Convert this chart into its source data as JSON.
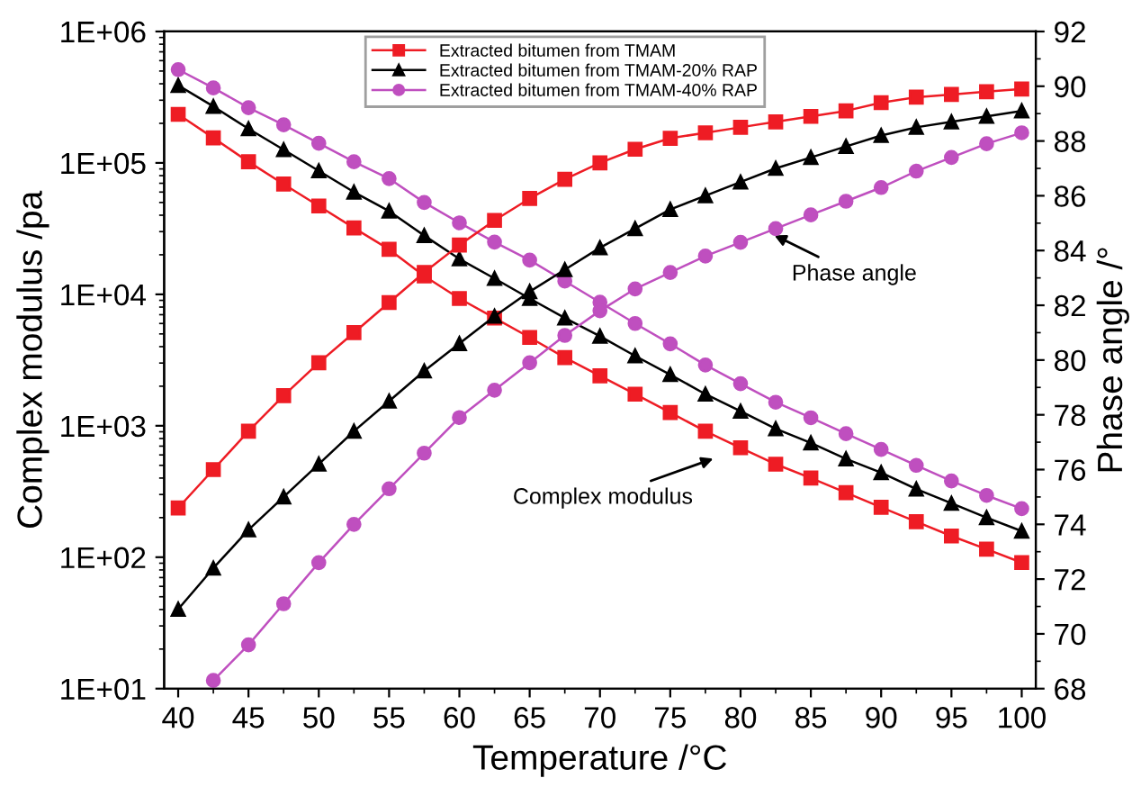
{
  "chart_data": {
    "type": "line",
    "xlabel": "Temperature /°C",
    "ylabel": "Complex modulus /pa",
    "y2label": "Phase angle /°",
    "log": "y",
    "legend": "top",
    "grid": false,
    "xlim": [
      39,
      101
    ],
    "xticks": [
      40,
      45,
      50,
      55,
      60,
      65,
      70,
      75,
      80,
      85,
      90,
      95,
      100
    ],
    "ylim": [
      10,
      1000000
    ],
    "yticks": [
      {
        "value": 10,
        "label": "1E+01"
      },
      {
        "value": 100,
        "label": "1E+02"
      },
      {
        "value": 1000,
        "label": "1E+03"
      },
      {
        "value": 10000,
        "label": "1E+04"
      },
      {
        "value": 100000,
        "label": "1E+05"
      },
      {
        "value": 1000000,
        "label": "1E+06"
      }
    ],
    "y2lim": [
      68,
      92
    ],
    "y2ticks": [
      68,
      70,
      72,
      74,
      76,
      78,
      80,
      82,
      84,
      86,
      88,
      90,
      92
    ],
    "x": [
      40,
      42.5,
      45,
      47.5,
      50,
      52.5,
      55,
      57.5,
      60,
      62.5,
      65,
      67.5,
      70,
      72.5,
      75,
      77.5,
      80,
      82.5,
      85,
      87.5,
      90,
      92.5,
      95,
      97.5,
      100
    ],
    "series": [
      {
        "name": "Extracted bitumen from TMAM",
        "color": "#ee1c24",
        "marker": "square",
        "values": [
          234000,
          155000,
          102000,
          69000,
          47000,
          32000,
          22000,
          13800,
          9300,
          6600,
          4700,
          3300,
          2400,
          1740,
          1260,
          910,
          680,
          510,
          400,
          310,
          240,
          186,
          145,
          115,
          91
        ]
      },
      {
        "name": "Extracted bitumen from TMAM-20% RAP",
        "color": "#000000",
        "marker": "triangle",
        "values": [
          389000,
          269000,
          182000,
          126000,
          87000,
          60000,
          43000,
          28000,
          18600,
          13200,
          9300,
          6600,
          4800,
          3400,
          2450,
          1740,
          1290,
          950,
          740,
          560,
          440,
          330,
          257,
          200,
          158
        ]
      },
      {
        "name": "Extracted bitumen from TMAM-40% RAP",
        "color": "#bf4fbf",
        "marker": "circle",
        "values": [
          513000,
          372000,
          263000,
          195000,
          141000,
          102000,
          76000,
          50000,
          35000,
          25000,
          18200,
          12600,
          8700,
          6000,
          4200,
          2900,
          2090,
          1510,
          1150,
          870,
          660,
          500,
          380,
          295,
          234
        ]
      },
      {
        "color": "#ee1c24",
        "marker": "square",
        "axis": "y2",
        "values": [
          74.6,
          76.0,
          77.4,
          78.7,
          79.9,
          81.0,
          82.1,
          83.2,
          84.2,
          85.1,
          85.9,
          86.6,
          87.2,
          87.7,
          88.1,
          88.3,
          88.5,
          88.7,
          88.9,
          89.1,
          89.4,
          89.6,
          89.7,
          89.8,
          89.9
        ]
      },
      {
        "color": "#000000",
        "marker": "triangle",
        "axis": "y2",
        "values": [
          70.9,
          72.4,
          73.8,
          75.0,
          76.2,
          77.4,
          78.5,
          79.6,
          80.6,
          81.6,
          82.5,
          83.3,
          84.1,
          84.8,
          85.5,
          86.0,
          86.5,
          87.0,
          87.4,
          87.8,
          88.2,
          88.5,
          88.7,
          88.9,
          89.1
        ]
      },
      {
        "color": "#bf4fbf",
        "marker": "circle",
        "axis": "y2",
        "values": [
          null,
          68.3,
          69.6,
          71.1,
          72.6,
          74.0,
          75.3,
          76.6,
          77.9,
          78.9,
          79.9,
          80.9,
          81.8,
          82.6,
          83.2,
          83.8,
          84.3,
          84.8,
          85.3,
          85.8,
          86.3,
          86.9,
          87.4,
          87.9,
          88.3
        ]
      }
    ],
    "annotations": [
      "Phase angle",
      "Complex modulus"
    ]
  }
}
